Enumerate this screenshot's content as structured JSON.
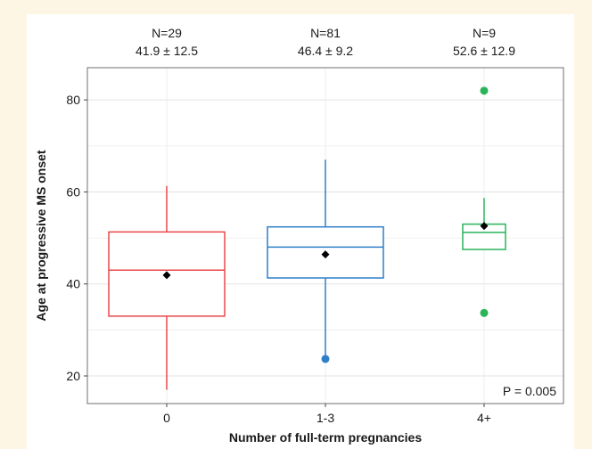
{
  "chart_data": {
    "type": "box",
    "xlabel": "Number of full-term pregnancies",
    "ylabel": "Age at progressive MS onset",
    "ylim": [
      14,
      87
    ],
    "yticks": [
      20,
      40,
      60,
      80
    ],
    "grid": true,
    "categories": [
      "0",
      "1-3",
      "4+"
    ],
    "groups": [
      {
        "label": "0",
        "n_label": "N=29",
        "stat_label": "41.9 ± 12.5",
        "color": "#e8484a",
        "q1": 33.0,
        "median": 43.0,
        "q3": 51.3,
        "whisker_low": 17.0,
        "whisker_high": 61.3,
        "mean": 41.9,
        "outliers": []
      },
      {
        "label": "1-3",
        "n_label": "N=81",
        "stat_label": "46.4 ± 9.2",
        "color": "#2f7fc8",
        "q1": 41.3,
        "median": 48.0,
        "q3": 52.4,
        "whisker_low": 24.0,
        "whisker_high": 67.0,
        "mean": 46.4,
        "outliers": [
          23.7
        ]
      },
      {
        "label": "4+",
        "n_label": "N=9",
        "stat_label": "52.6 ± 12.9",
        "color": "#2bb35a",
        "q1": 47.5,
        "median": 51.2,
        "q3": 53.0,
        "whisker_low": 47.5,
        "whisker_high": 58.7,
        "mean": 52.6,
        "outliers": [
          82.0,
          33.7
        ]
      }
    ],
    "annotation": "P = 0.005",
    "mean_color": "#000000"
  }
}
